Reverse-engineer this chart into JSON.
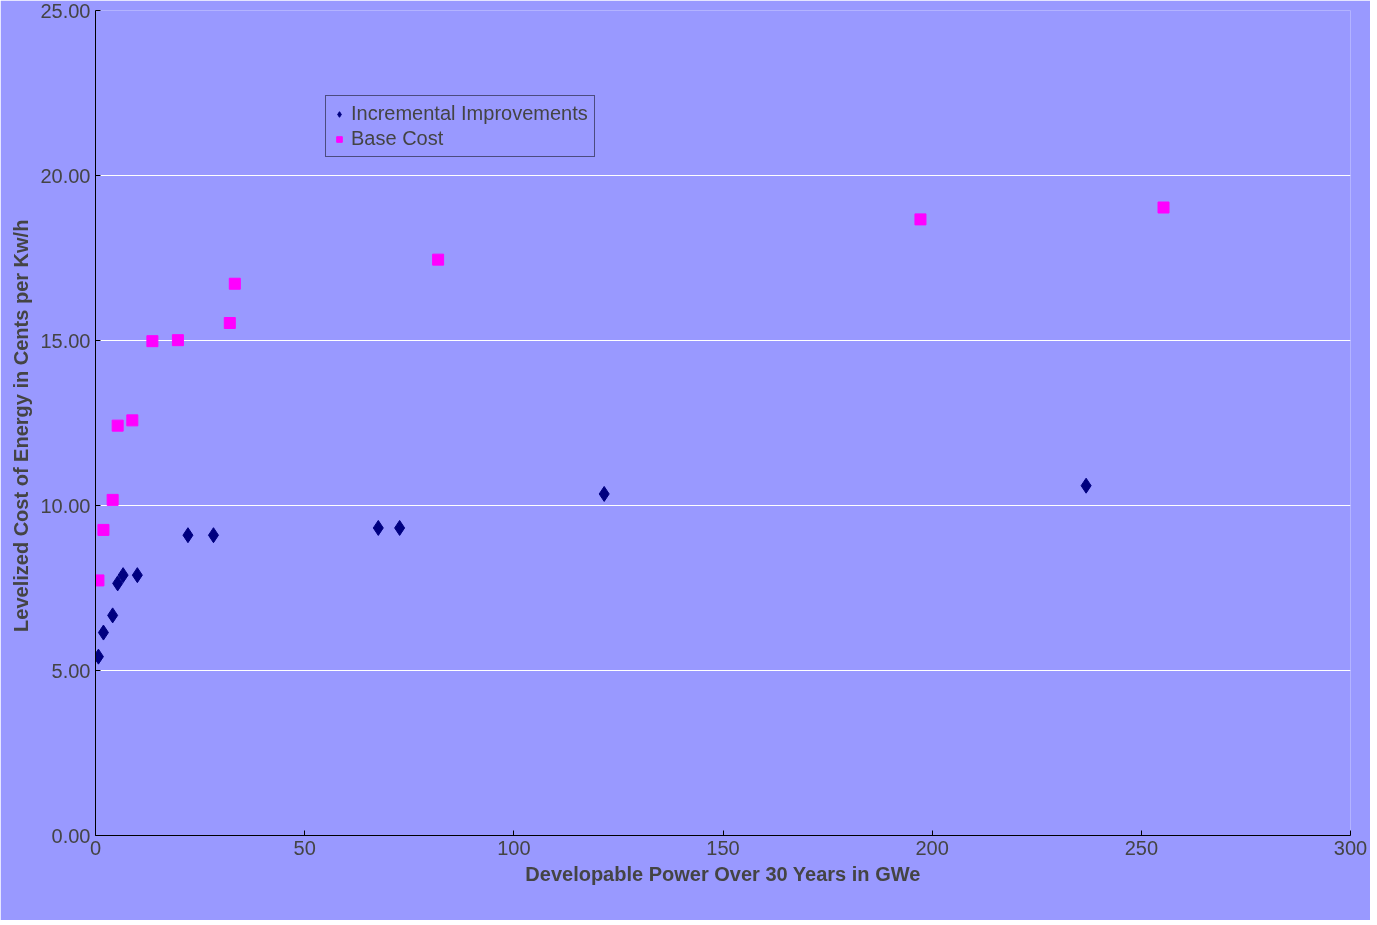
{
  "chart_data": {
    "type": "scatter",
    "xlabel": "Developable Power Over 30 Years in GWe",
    "ylabel": "Levelized Cost  of Energy in Cents per Kw/h",
    "series": [
      {
        "name": "Incremental Improvements",
        "color": "#000080",
        "marker": "diamond",
        "x": [
          0.7,
          1.9,
          4.1,
          5.3,
          6.6,
          10.0,
          22.1,
          28.2,
          67.6,
          72.7,
          121.6,
          236.8
        ],
        "values": [
          5.42,
          6.15,
          6.67,
          7.64,
          7.89,
          7.89,
          9.1,
          9.1,
          9.32,
          9.32,
          10.35,
          10.6
        ]
      },
      {
        "name": "Base Cost",
        "color": "#ff00ff",
        "marker": "square",
        "x": [
          0.7,
          1.9,
          4.1,
          5.3,
          8.8,
          13.6,
          19.7,
          32.1,
          33.3,
          81.9,
          197.2,
          255.3
        ],
        "values": [
          7.73,
          9.26,
          10.17,
          12.42,
          12.58,
          14.98,
          15.01,
          15.53,
          16.72,
          17.45,
          18.67,
          19.03
        ]
      }
    ],
    "xlim": [
      0,
      300
    ],
    "xticks": [
      0,
      50,
      100,
      150,
      200,
      250,
      300
    ],
    "ylim": [
      0,
      25
    ],
    "yticks": [
      {
        "value": 0,
        "label": "0.00"
      },
      {
        "value": 5,
        "label": "5.00"
      },
      {
        "value": 10,
        "label": "10.00"
      },
      {
        "value": 15,
        "label": "15.00"
      },
      {
        "value": 20,
        "label": "20.00"
      },
      {
        "value": 25,
        "label": "25.00"
      }
    ],
    "grid": "y",
    "legend": "top left"
  }
}
